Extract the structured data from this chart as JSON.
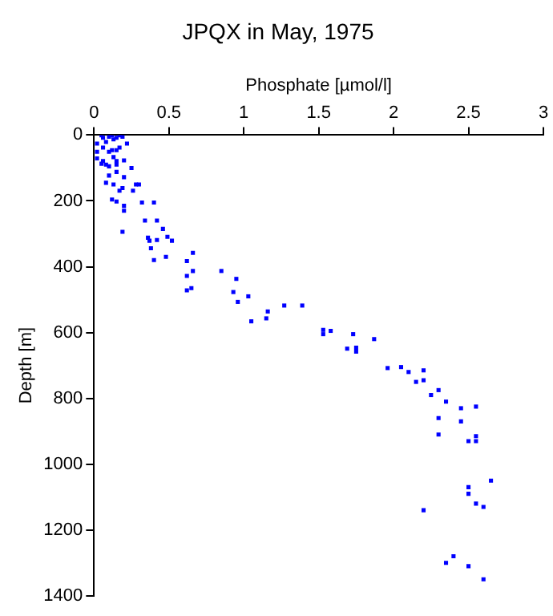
{
  "chart_data": {
    "type": "scatter",
    "title": "JPQX in May, 1975",
    "xlabel": "Phosphate [µmol/l]",
    "ylabel": "Depth [m]",
    "xlim": [
      0,
      3
    ],
    "xticks": [
      0,
      0.5,
      1,
      1.5,
      2,
      2.5,
      3
    ],
    "ylim": [
      1400,
      0
    ],
    "yticks": [
      0,
      200,
      400,
      600,
      800,
      1000,
      1200,
      1400
    ],
    "grid": false,
    "legend": false,
    "marker": "square",
    "series": [
      {
        "color": "#0000ff",
        "x": [
          0.02,
          0.05,
          0.06,
          0.08,
          0.1,
          0.12,
          0.13,
          0.15,
          0.17,
          0.19,
          0.22,
          0.02,
          0.06,
          0.1,
          0.12,
          0.15,
          0.17,
          0.02,
          0.06,
          0.13,
          0.15,
          0.08,
          0.1,
          0.15,
          0.05,
          0.2,
          0.25,
          0.1,
          0.15,
          0.2,
          0.08,
          0.13,
          0.19,
          0.17,
          0.28,
          0.3,
          0.26,
          0.12,
          0.15,
          0.2,
          0.2,
          0.32,
          0.4,
          0.19,
          0.34,
          0.42,
          0.46,
          0.49,
          0.52,
          0.36,
          0.37,
          0.42,
          0.38,
          0.66,
          0.48,
          0.4,
          0.62,
          0.66,
          0.85,
          0.95,
          0.62,
          0.93,
          0.65,
          0.62,
          0.96,
          1.03,
          1.16,
          1.27,
          1.39,
          1.15,
          1.05,
          1.53,
          1.53,
          1.58,
          1.73,
          1.87,
          1.69,
          1.75,
          1.75,
          1.96,
          2.05,
          2.1,
          2.2,
          2.2,
          2.15,
          2.3,
          2.25,
          2.35,
          2.45,
          2.55,
          2.3,
          2.45,
          2.3,
          2.55,
          2.5,
          2.55,
          2.65,
          2.5,
          2.5,
          2.55,
          2.6,
          2.2,
          2.4,
          2.35,
          2.5,
          2.6
        ],
        "values": [
          26,
          1,
          8,
          21,
          5,
          1,
          13,
          8,
          1,
          5,
          26,
          51,
          38,
          51,
          46,
          46,
          38,
          71,
          79,
          67,
          79,
          90,
          95,
          90,
          87,
          77,
          100,
          123,
          112,
          128,
          145,
          150,
          161,
          169,
          150,
          150,
          169,
          196,
          202,
          215,
          230,
          205,
          205,
          294,
          260,
          260,
          285,
          309,
          321,
          312,
          321,
          319,
          344,
          358,
          370,
          380,
          383,
          413,
          413,
          437,
          428,
          477,
          465,
          472,
          507,
          490,
          536,
          518,
          518,
          557,
          566,
          592,
          605,
          595,
          605,
          620,
          649,
          646,
          658,
          708,
          705,
          720,
          715,
          745,
          750,
          775,
          790,
          810,
          830,
          825,
          860,
          870,
          910,
          915,
          930,
          930,
          1050,
          1070,
          1090,
          1120,
          1130,
          1140,
          1280,
          1300,
          1310,
          1350
        ]
      }
    ]
  }
}
